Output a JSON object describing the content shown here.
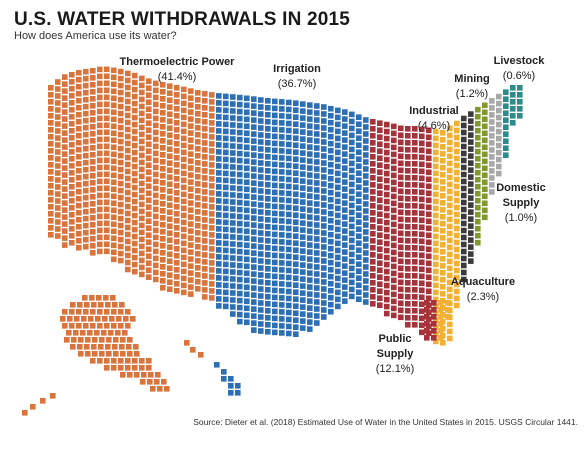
{
  "header": {
    "title": "U.S. WATER WITHDRAWALS IN 2015",
    "subtitle": "How does America use its water?"
  },
  "source": "Source: Dieter et al. (2018) Estimated Use of Water in the United States in 2015. USGS Circular 1441.",
  "chart_data": {
    "type": "waffle-map",
    "title": "U.S. WATER WITHDRAWALS IN 2015",
    "subtitle": "How does America use its water?",
    "unit": "percent of total withdrawals",
    "categories": [
      {
        "name": "Thermoelectric Power",
        "value": 41.4,
        "value_label": "(41.4%)",
        "color": "#d9743c"
      },
      {
        "name": "Irrigation",
        "value": 36.7,
        "value_label": "(36.7%)",
        "color": "#2c6fb6"
      },
      {
        "name": "Public Supply",
        "value": 12.1,
        "value_label": "(12.1%)",
        "color": "#a8323a"
      },
      {
        "name": "Industrial",
        "value": 4.6,
        "value_label": "(4.6%)",
        "color": "#f2b134"
      },
      {
        "name": "Aquaculture",
        "value": 2.3,
        "value_label": "(2.3%)",
        "color": "#3b3b3b"
      },
      {
        "name": "Mining",
        "value": 1.2,
        "value_label": "(1.2%)",
        "color": "#7f9a2b"
      },
      {
        "name": "Domestic Supply",
        "value": 1.0,
        "value_label": "(1.0%)",
        "color": "#a8a8a8"
      },
      {
        "name": "Livestock",
        "value": 0.6,
        "value_label": "(0.6%)",
        "color": "#2e8b8b"
      }
    ]
  }
}
